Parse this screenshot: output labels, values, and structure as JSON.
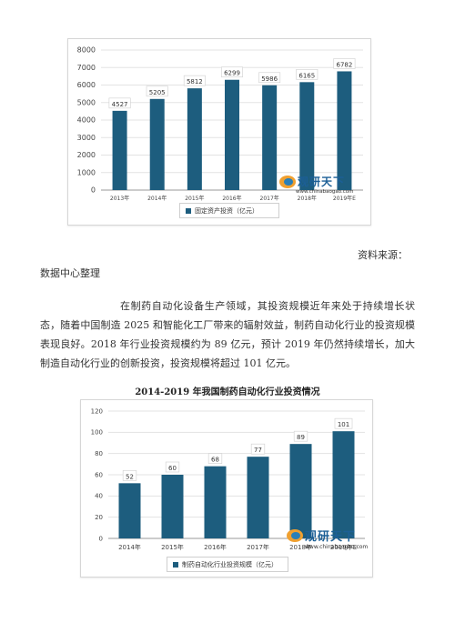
{
  "chart1": {
    "chart_data": {
      "type": "bar",
      "categories": [
        "2013年",
        "2014年",
        "2015年",
        "2016年",
        "2017年",
        "2018年",
        "2019年E"
      ],
      "series": [
        {
          "name": "固定资产投资（亿元）",
          "values": [
            4527,
            5205,
            5812,
            6299,
            5986,
            6165,
            6782
          ]
        }
      ],
      "ylim": [
        0,
        8000
      ],
      "yticks": [
        0,
        1000,
        2000,
        3000,
        4000,
        5000,
        6000,
        7000,
        8000
      ],
      "grid": true,
      "legend": "bottom"
    },
    "legend_label": "固定资产投资（亿元）"
  },
  "source_label": "资料来源：",
  "source_org": "数据中心整理",
  "paragraph": "在制药自动化设备生产领域，其投资规模近年来处于持续增长状态，随着中国制造 2025 和智能化工厂带来的辐射效益，制药自动化行业的投资规模表现良好。2018 年行业投资规模约为 89 亿元，预计 2019 年仍然持续增长，加大制造自动化行业的创新投资，投资规模将超过 101 亿元。",
  "chart2": {
    "title": "2014-2019 年我国制药自动化行业投资情况",
    "chart_data": {
      "type": "bar",
      "title": "2014-2019 年我国制药自动化行业投资情况",
      "categories": [
        "2014年",
        "2015年",
        "2016年",
        "2017年",
        "2018年",
        "2019年E"
      ],
      "series": [
        {
          "name": "制药自动化行业投资规模（亿元）",
          "values": [
            52,
            60,
            68,
            77,
            89,
            101
          ]
        }
      ],
      "ylim": [
        0,
        120
      ],
      "yticks": [
        0,
        20,
        40,
        60,
        80,
        100,
        120
      ],
      "grid": true,
      "legend": "bottom"
    },
    "legend_label": "制药自动化行业投资规模（亿元）"
  },
  "watermark": {
    "brand": "观研天下",
    "url": "www.chinabaogao.com"
  },
  "colors": {
    "bar": "#1d5d7e",
    "grid": "#e3e3e3",
    "axis": "#999999"
  }
}
